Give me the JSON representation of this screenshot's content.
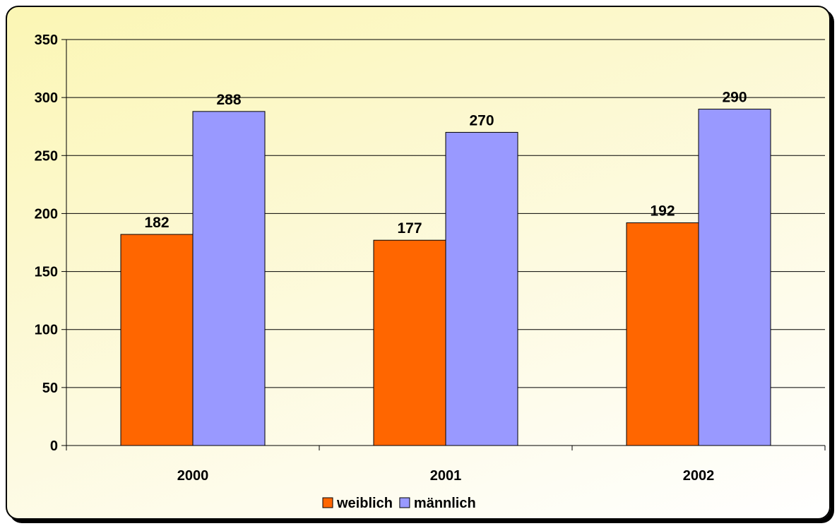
{
  "chart_data": {
    "type": "bar",
    "categories": [
      "2000",
      "2001",
      "2002"
    ],
    "series": [
      {
        "name": "weiblich",
        "values": [
          182,
          177,
          192
        ],
        "color": "#ff6600"
      },
      {
        "name": "männlich",
        "values": [
          288,
          270,
          290
        ],
        "color": "#9999ff"
      }
    ],
    "ylim": [
      0,
      350
    ],
    "yticks": [
      0,
      50,
      100,
      150,
      200,
      250,
      300,
      350
    ],
    "grid": true,
    "legend_position": "bottom",
    "title": "",
    "xlabel": "",
    "ylabel": ""
  }
}
